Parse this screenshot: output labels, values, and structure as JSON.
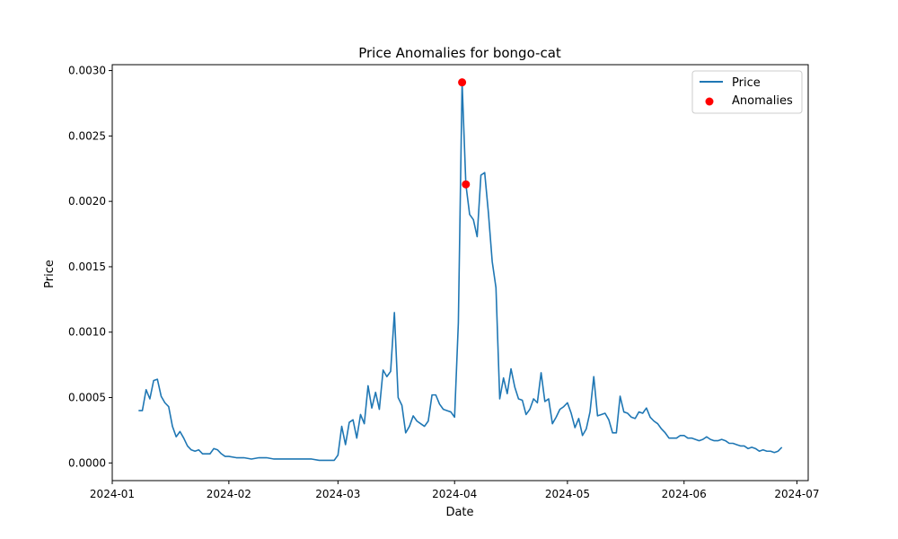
{
  "chart_data": {
    "type": "line",
    "title": "Price Anomalies for bongo-cat",
    "xlabel": "Date",
    "ylabel": "Price",
    "x_axis_type": "date",
    "xlim": [
      "2024-01-01",
      "2024-07-04"
    ],
    "ylim": [
      -0.000135,
      0.003045
    ],
    "x_ticks": [
      "2024-01",
      "2024-02",
      "2024-03",
      "2024-04",
      "2024-05",
      "2024-06",
      "2024-07"
    ],
    "y_ticks": [
      "0.0000",
      "0.0005",
      "0.0010",
      "0.0015",
      "0.0020",
      "0.0025",
      "0.0030"
    ],
    "grid": false,
    "legend": {
      "placement": "top-right",
      "entries": [
        "Price",
        "Anomalies"
      ]
    },
    "series": [
      {
        "name": "Price",
        "kind": "line",
        "color": "#1f77b4",
        "points": [
          [
            "2024-01-08",
            0.0004
          ],
          [
            "2024-01-09",
            0.0004
          ],
          [
            "2024-01-10",
            0.00056
          ],
          [
            "2024-01-11",
            0.00049
          ],
          [
            "2024-01-12",
            0.00063
          ],
          [
            "2024-01-13",
            0.00064
          ],
          [
            "2024-01-14",
            0.00051
          ],
          [
            "2024-01-15",
            0.00046
          ],
          [
            "2024-01-16",
            0.00043
          ],
          [
            "2024-01-17",
            0.00028
          ],
          [
            "2024-01-18",
            0.0002
          ],
          [
            "2024-01-19",
            0.00024
          ],
          [
            "2024-01-20",
            0.00019
          ],
          [
            "2024-01-21",
            0.00013
          ],
          [
            "2024-01-22",
            0.0001
          ],
          [
            "2024-01-23",
            9e-05
          ],
          [
            "2024-01-24",
            0.0001
          ],
          [
            "2024-01-25",
            7e-05
          ],
          [
            "2024-01-26",
            7e-05
          ],
          [
            "2024-01-27",
            7e-05
          ],
          [
            "2024-01-28",
            0.00011
          ],
          [
            "2024-01-29",
            0.0001
          ],
          [
            "2024-01-30",
            7e-05
          ],
          [
            "2024-01-31",
            5e-05
          ],
          [
            "2024-02-01",
            5e-05
          ],
          [
            "2024-02-03",
            4e-05
          ],
          [
            "2024-02-05",
            4e-05
          ],
          [
            "2024-02-07",
            3e-05
          ],
          [
            "2024-02-09",
            4e-05
          ],
          [
            "2024-02-11",
            4e-05
          ],
          [
            "2024-02-13",
            3e-05
          ],
          [
            "2024-02-15",
            3e-05
          ],
          [
            "2024-02-17",
            3e-05
          ],
          [
            "2024-02-19",
            3e-05
          ],
          [
            "2024-02-21",
            3e-05
          ],
          [
            "2024-02-23",
            3e-05
          ],
          [
            "2024-02-25",
            2e-05
          ],
          [
            "2024-02-27",
            2e-05
          ],
          [
            "2024-02-29",
            2e-05
          ],
          [
            "2024-03-01",
            6e-05
          ],
          [
            "2024-03-02",
            0.00028
          ],
          [
            "2024-03-03",
            0.00014
          ],
          [
            "2024-03-04",
            0.00031
          ],
          [
            "2024-03-05",
            0.00033
          ],
          [
            "2024-03-06",
            0.00019
          ],
          [
            "2024-03-07",
            0.00037
          ],
          [
            "2024-03-08",
            0.0003
          ],
          [
            "2024-03-09",
            0.00059
          ],
          [
            "2024-03-10",
            0.00042
          ],
          [
            "2024-03-11",
            0.00054
          ],
          [
            "2024-03-12",
            0.00041
          ],
          [
            "2024-03-13",
            0.00071
          ],
          [
            "2024-03-14",
            0.00066
          ],
          [
            "2024-03-15",
            0.0007
          ],
          [
            "2024-03-16",
            0.00115
          ],
          [
            "2024-03-17",
            0.0005
          ],
          [
            "2024-03-18",
            0.00044
          ],
          [
            "2024-03-19",
            0.00023
          ],
          [
            "2024-03-20",
            0.00028
          ],
          [
            "2024-03-21",
            0.00036
          ],
          [
            "2024-03-22",
            0.00032
          ],
          [
            "2024-03-23",
            0.0003
          ],
          [
            "2024-03-24",
            0.00028
          ],
          [
            "2024-03-25",
            0.00032
          ],
          [
            "2024-03-26",
            0.00052
          ],
          [
            "2024-03-27",
            0.00052
          ],
          [
            "2024-03-28",
            0.00045
          ],
          [
            "2024-03-29",
            0.00041
          ],
          [
            "2024-03-30",
            0.0004
          ],
          [
            "2024-03-31",
            0.00039
          ],
          [
            "2024-04-01",
            0.00035
          ],
          [
            "2024-04-02",
            0.00107
          ],
          [
            "2024-04-03",
            0.00291
          ],
          [
            "2024-04-04",
            0.00213
          ],
          [
            "2024-04-05",
            0.0019
          ],
          [
            "2024-04-06",
            0.00186
          ],
          [
            "2024-04-07",
            0.00173
          ],
          [
            "2024-04-08",
            0.0022
          ],
          [
            "2024-04-09",
            0.00222
          ],
          [
            "2024-04-10",
            0.00191
          ],
          [
            "2024-04-11",
            0.00154
          ],
          [
            "2024-04-12",
            0.00134
          ],
          [
            "2024-04-13",
            0.00049
          ],
          [
            "2024-04-14",
            0.00065
          ],
          [
            "2024-04-15",
            0.00053
          ],
          [
            "2024-04-16",
            0.00072
          ],
          [
            "2024-04-17",
            0.00058
          ],
          [
            "2024-04-18",
            0.00049
          ],
          [
            "2024-04-19",
            0.00048
          ],
          [
            "2024-04-20",
            0.00037
          ],
          [
            "2024-04-21",
            0.00041
          ],
          [
            "2024-04-22",
            0.00049
          ],
          [
            "2024-04-23",
            0.00046
          ],
          [
            "2024-04-24",
            0.00069
          ],
          [
            "2024-04-25",
            0.00047
          ],
          [
            "2024-04-26",
            0.00049
          ],
          [
            "2024-04-27",
            0.0003
          ],
          [
            "2024-04-28",
            0.00035
          ],
          [
            "2024-04-29",
            0.00041
          ],
          [
            "2024-04-30",
            0.00043
          ],
          [
            "2024-05-01",
            0.00046
          ],
          [
            "2024-05-02",
            0.00038
          ],
          [
            "2024-05-03",
            0.00027
          ],
          [
            "2024-05-04",
            0.00034
          ],
          [
            "2024-05-05",
            0.00021
          ],
          [
            "2024-05-06",
            0.00026
          ],
          [
            "2024-05-07",
            0.00039
          ],
          [
            "2024-05-08",
            0.00066
          ],
          [
            "2024-05-09",
            0.00036
          ],
          [
            "2024-05-10",
            0.00037
          ],
          [
            "2024-05-11",
            0.00038
          ],
          [
            "2024-05-12",
            0.00033
          ],
          [
            "2024-05-13",
            0.00023
          ],
          [
            "2024-05-14",
            0.00023
          ],
          [
            "2024-05-15",
            0.00051
          ],
          [
            "2024-05-16",
            0.00039
          ],
          [
            "2024-05-17",
            0.00038
          ],
          [
            "2024-05-18",
            0.00035
          ],
          [
            "2024-05-19",
            0.00034
          ],
          [
            "2024-05-20",
            0.00039
          ],
          [
            "2024-05-21",
            0.00038
          ],
          [
            "2024-05-22",
            0.00042
          ],
          [
            "2024-05-23",
            0.00035
          ],
          [
            "2024-05-24",
            0.00032
          ],
          [
            "2024-05-25",
            0.0003
          ],
          [
            "2024-05-26",
            0.00026
          ],
          [
            "2024-05-27",
            0.00023
          ],
          [
            "2024-05-28",
            0.00019
          ],
          [
            "2024-05-29",
            0.00019
          ],
          [
            "2024-05-30",
            0.00019
          ],
          [
            "2024-05-31",
            0.00021
          ],
          [
            "2024-06-01",
            0.00021
          ],
          [
            "2024-06-02",
            0.00019
          ],
          [
            "2024-06-03",
            0.00019
          ],
          [
            "2024-06-04",
            0.00018
          ],
          [
            "2024-06-05",
            0.00017
          ],
          [
            "2024-06-06",
            0.00018
          ],
          [
            "2024-06-07",
            0.0002
          ],
          [
            "2024-06-08",
            0.00018
          ],
          [
            "2024-06-09",
            0.00017
          ],
          [
            "2024-06-10",
            0.00017
          ],
          [
            "2024-06-11",
            0.00018
          ],
          [
            "2024-06-12",
            0.00017
          ],
          [
            "2024-06-13",
            0.00015
          ],
          [
            "2024-06-14",
            0.00015
          ],
          [
            "2024-06-15",
            0.00014
          ],
          [
            "2024-06-16",
            0.00013
          ],
          [
            "2024-06-17",
            0.00013
          ],
          [
            "2024-06-18",
            0.00011
          ],
          [
            "2024-06-19",
            0.00012
          ],
          [
            "2024-06-20",
            0.00011
          ],
          [
            "2024-06-21",
            9e-05
          ],
          [
            "2024-06-22",
            0.0001
          ],
          [
            "2024-06-23",
            9e-05
          ],
          [
            "2024-06-24",
            9e-05
          ],
          [
            "2024-06-25",
            8e-05
          ],
          [
            "2024-06-26",
            9e-05
          ],
          [
            "2024-06-27",
            0.00012
          ]
        ]
      },
      {
        "name": "Anomalies",
        "kind": "scatter",
        "color": "#ff0000",
        "points": [
          [
            "2024-04-03",
            0.00291
          ],
          [
            "2024-04-04",
            0.00213
          ]
        ]
      }
    ]
  }
}
